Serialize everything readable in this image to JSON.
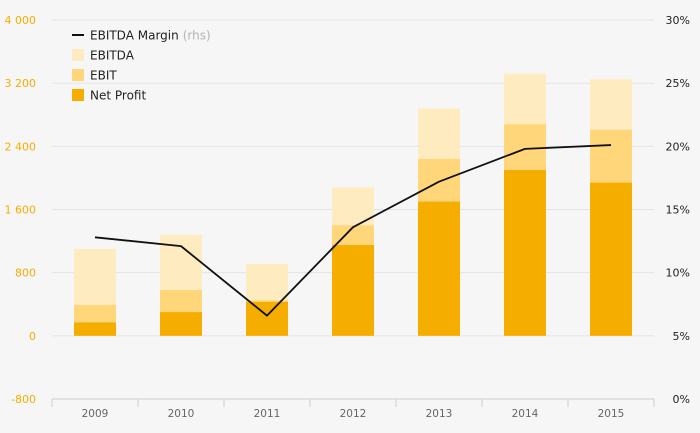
{
  "chart_data": {
    "type": "bar",
    "stacked": false,
    "categories": [
      "2009",
      "2010",
      "2011",
      "2012",
      "2013",
      "2014",
      "2015"
    ],
    "series": [
      {
        "name": "EBITDA",
        "type": "bar",
        "color": "#ffebc0",
        "values": [
          1100,
          1280,
          910,
          1880,
          2880,
          3320,
          3250
        ]
      },
      {
        "name": "EBIT",
        "type": "bar",
        "color": "#ffd77a",
        "values": [
          390,
          580,
          450,
          1400,
          2240,
          2680,
          2610
        ]
      },
      {
        "name": "Net Profit",
        "type": "bar",
        "color": "#f5ad00",
        "values": [
          170,
          300,
          430,
          1150,
          1700,
          2100,
          1940
        ]
      },
      {
        "name": "EBITDA Margin",
        "name_note": "(rhs)",
        "type": "line",
        "axis": "right",
        "color": "#111111",
        "values": [
          12.8,
          12.1,
          6.6,
          13.6,
          17.2,
          19.8,
          20.1
        ]
      }
    ],
    "y_left": {
      "ylim": [
        -800,
        4000
      ],
      "ticks": [
        "-800",
        "0",
        "800",
        "1 600",
        "2 400",
        "3 200",
        "4 000"
      ],
      "color": "#f5ad00"
    },
    "y_right": {
      "ylim": [
        0,
        30
      ],
      "ticks": [
        "0%",
        "5%",
        "10%",
        "15%",
        "20%",
        "25%",
        "30%"
      ]
    },
    "grid": true,
    "legend": "top-left"
  }
}
